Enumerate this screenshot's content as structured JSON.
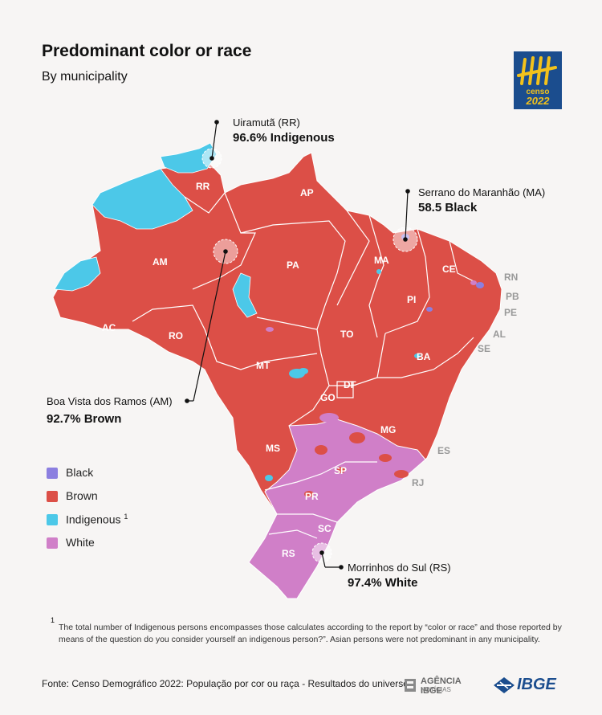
{
  "title": "Predominant color or race",
  "subtitle": "By municipality",
  "logo": {
    "word": "censo",
    "year": "2022"
  },
  "colors": {
    "black": "#8c7fe0",
    "brown": "#dc4f47",
    "indigenous": "#4cc8e8",
    "white": "#d07fc8",
    "background": "#f7f5f4",
    "border": "#ffffff"
  },
  "legend": [
    {
      "label": "Black",
      "color": "#8c7fe0",
      "note": ""
    },
    {
      "label": "Brown",
      "color": "#dc4f47",
      "note": ""
    },
    {
      "label": "Indigenous",
      "color": "#4cc8e8",
      "note": "1"
    },
    {
      "label": "White",
      "color": "#d07fc8",
      "note": ""
    }
  ],
  "callouts": [
    {
      "place": "Uiramutã (RR)",
      "value": "96.6% Indigenous"
    },
    {
      "place": "Serrano do Maranhão (MA)",
      "value": "58.5 Black"
    },
    {
      "place": "Boa Vista dos Ramos (AM)",
      "value": "92.7% Brown"
    },
    {
      "place": "Morrinhos do Sul (RS)",
      "value": "97.4% White"
    }
  ],
  "states": [
    "RR",
    "AP",
    "AM",
    "PA",
    "MA",
    "CE",
    "RN",
    "PB",
    "PE",
    "AL",
    "SE",
    "PI",
    "AC",
    "RO",
    "TO",
    "BA",
    "MT",
    "DF",
    "GO",
    "MG",
    "ES",
    "MS",
    "SP",
    "RJ",
    "PR",
    "SC",
    "RS"
  ],
  "footnote_mark": "1",
  "footnote": "The total number of Indigenous persons encompasses those calculates according to the report by “color or race” and those reported by means of the question do you consider yourself an indigenous person?”. Asian persons were not predominant in any municipality.",
  "source": "Fonte: Censo Demográfico 2022: População por cor ou raça - Resultados do universo",
  "agency": {
    "name": "AGÊNCIA IBGE",
    "sub": "NOTÍCIAS"
  },
  "ibge": "IBGE"
}
